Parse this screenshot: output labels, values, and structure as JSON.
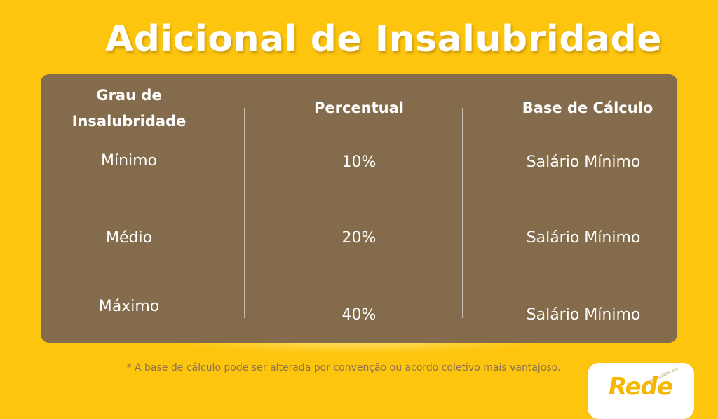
{
  "title": "Adicional de Insalubridade",
  "table": {
    "headers": [
      "Grau de Insalubridade",
      "Percentual",
      "Base de Cálculo"
    ],
    "rows": [
      {
        "grau": "Mínimo",
        "percentual": "10%",
        "base": "Salário Mínimo"
      },
      {
        "grau": "Médio",
        "percentual": "20%",
        "base": "Salário Mínimo"
      },
      {
        "grau": "Máximo",
        "percentual": "40%",
        "base": "Salário Mínimo"
      }
    ]
  },
  "footnote": "* A base de cálculo pode ser alterada por convenção ou acordo coletivo mais vantajoso.",
  "logo": {
    "name": "Rede",
    "tagline": "Advogados em"
  },
  "colors": {
    "background": "#FDC50E",
    "panel": "#836B4B",
    "text": "#FFFFFF",
    "note": "#8A7055"
  }
}
